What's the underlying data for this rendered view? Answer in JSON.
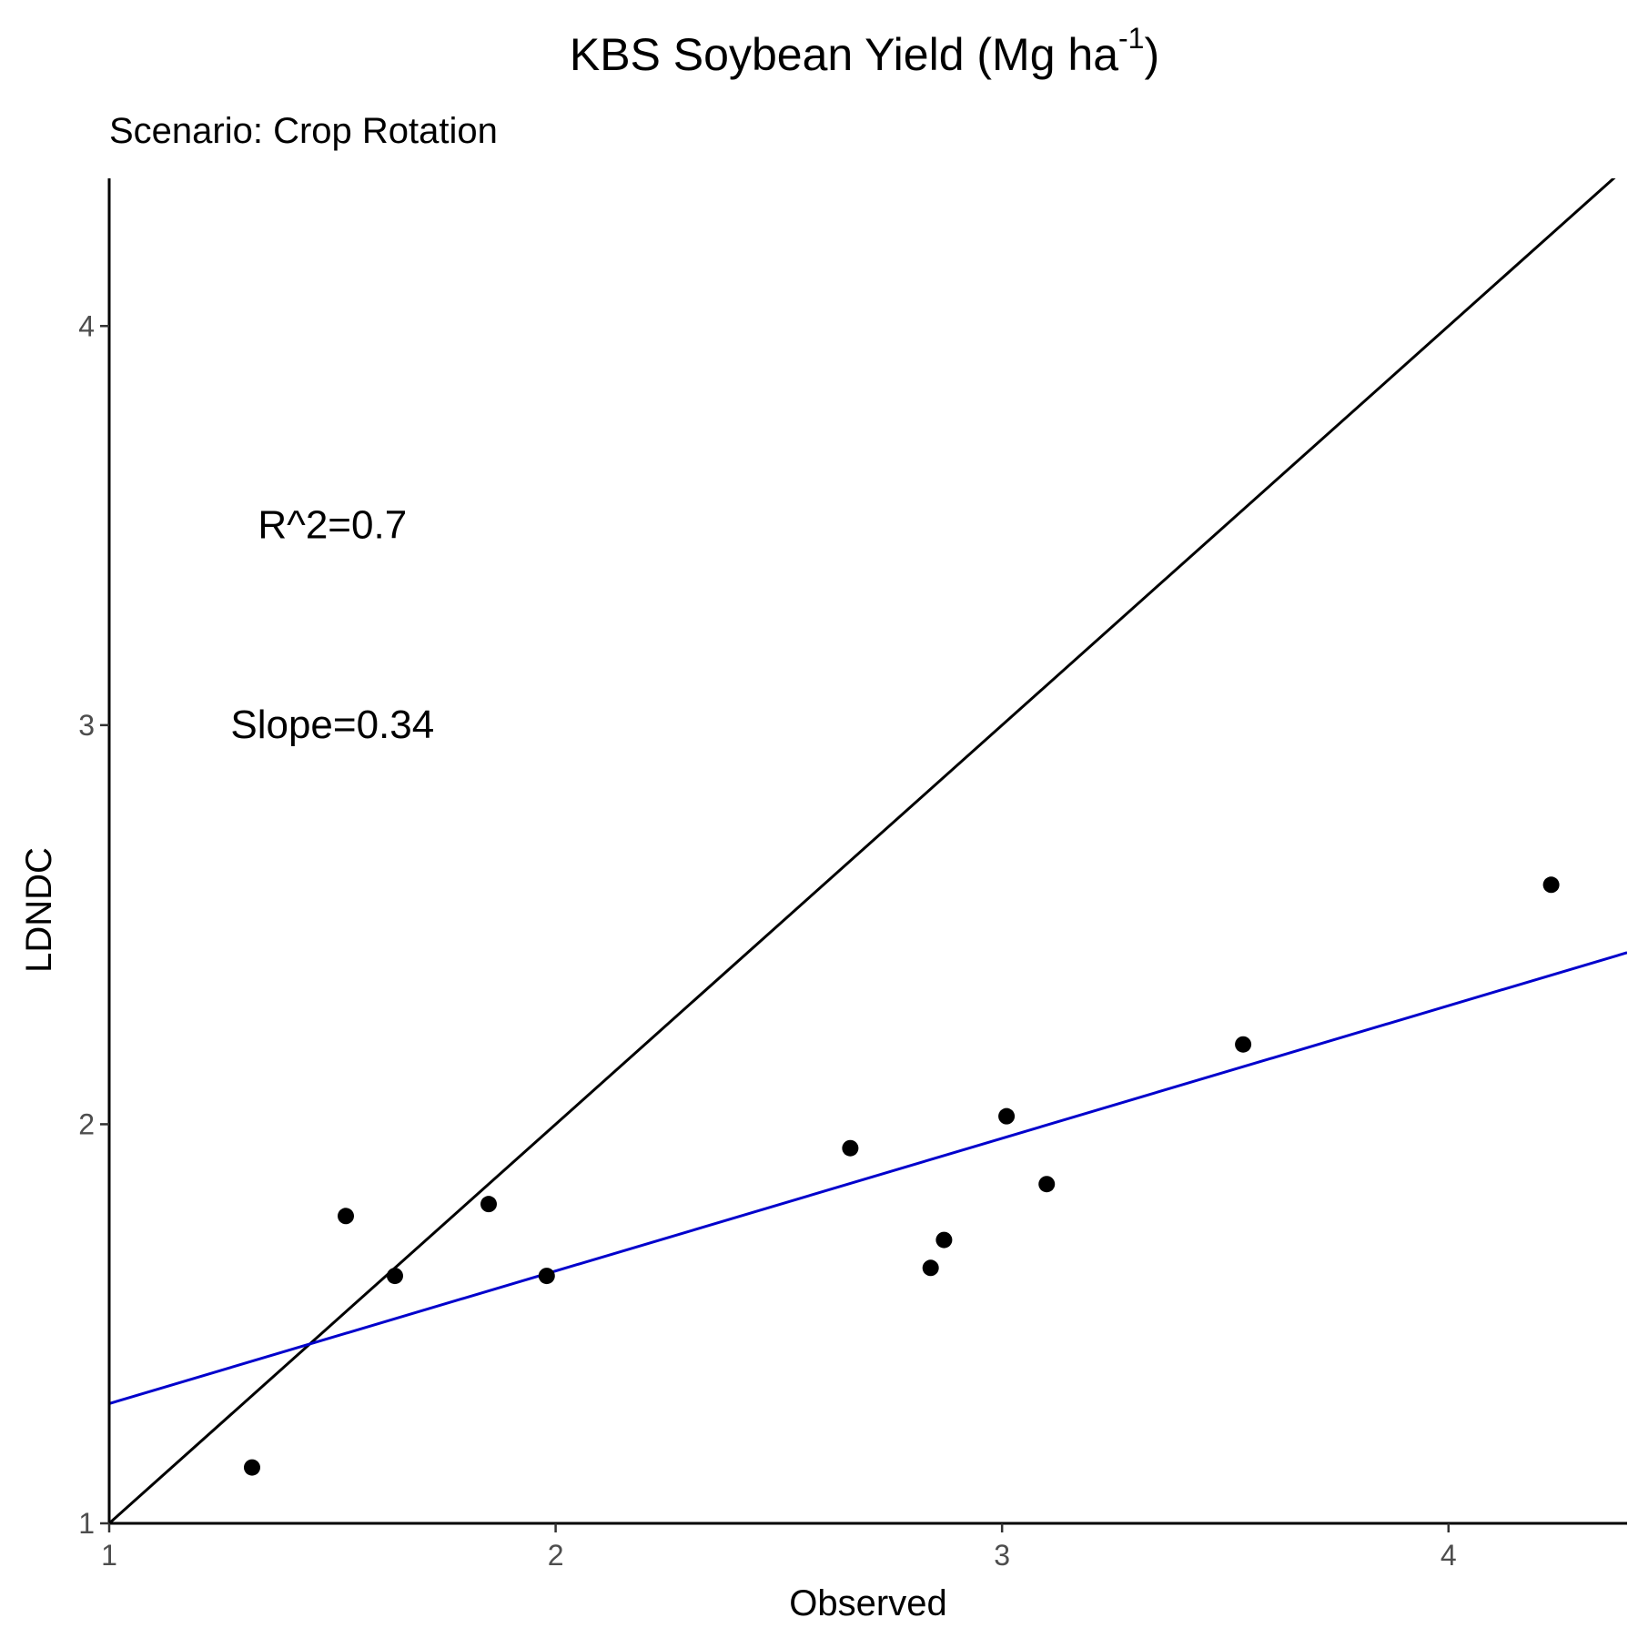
{
  "chart_data": {
    "type": "scatter",
    "title": "KBS Soybean Yield (Mg ha",
    "title_superscript": "-1",
    "title_suffix": ")",
    "subtitle": "Scenario: Crop Rotation",
    "xlabel": "Observed",
    "ylabel": "LDNDC",
    "xlim": [
      1.0,
      4.4
    ],
    "ylim": [
      1.0,
      4.37
    ],
    "x_ticks": [
      1,
      2,
      3,
      4
    ],
    "y_ticks": [
      1,
      2,
      3,
      4
    ],
    "grid": false,
    "points": {
      "x": [
        1.32,
        1.53,
        1.64,
        1.85,
        1.98,
        2.66,
        2.84,
        2.87,
        3.01,
        3.1,
        3.54,
        4.23
      ],
      "y": [
        1.14,
        1.77,
        1.62,
        1.8,
        1.62,
        1.94,
        1.64,
        1.71,
        2.02,
        1.85,
        2.2,
        2.6
      ],
      "color": "#000000"
    },
    "lines": [
      {
        "kind": "identity",
        "x": [
          1.0,
          4.4
        ],
        "y": [
          1.0,
          4.4
        ],
        "color": "#000000"
      },
      {
        "kind": "regression",
        "x": [
          1.0,
          4.4
        ],
        "y": [
          1.3,
          2.43
        ],
        "color": "#0000cc"
      }
    ],
    "annotations": [
      {
        "text": "R^2=0.7",
        "x": 1.5,
        "y": 3.5
      },
      {
        "text": "Slope=0.34",
        "x": 1.5,
        "y": 3.0
      }
    ]
  }
}
